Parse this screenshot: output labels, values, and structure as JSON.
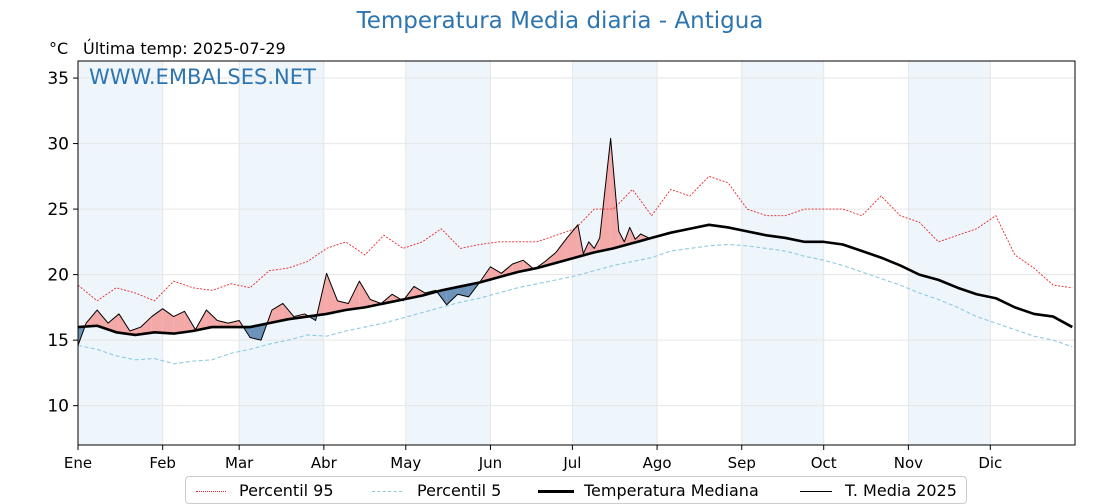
{
  "header": {
    "title": "Temperatura Media diaria - Antigua",
    "unit": "°C",
    "last_temp": "Última temp: 2025-07-29"
  },
  "watermark": "WWW.EMBALSES.NET",
  "colors": {
    "p95": "#e8272d",
    "p5": "#8ecae0",
    "median": "#000000",
    "current": "#000000",
    "above_fill": "#f4a9a9",
    "below_fill": "#6e93ba",
    "band": "#eef5fb",
    "title": "#2e75b0"
  },
  "legend": {
    "p95": "Percentil 95",
    "p5": "Percentil 5",
    "median": "Temperatura Mediana",
    "current": "T. Media 2025"
  },
  "chart_data": {
    "type": "line",
    "title": "Temperatura Media diaria - Antigua",
    "ylabel": "°C",
    "ylim": [
      7,
      36.3
    ],
    "xlim": [
      1,
      366
    ],
    "grid": true,
    "legend_position": "bottom",
    "y_ticks": [
      10,
      15,
      20,
      25,
      30,
      35
    ],
    "x_ticks": [
      {
        "day": 1,
        "label": "Ene"
      },
      {
        "day": 32,
        "label": "Feb"
      },
      {
        "day": 60,
        "label": "Mar"
      },
      {
        "day": 91,
        "label": "Abr"
      },
      {
        "day": 121,
        "label": "May"
      },
      {
        "day": 152,
        "label": "Jun"
      },
      {
        "day": 182,
        "label": "Jul"
      },
      {
        "day": 213,
        "label": "Ago"
      },
      {
        "day": 244,
        "label": "Sep"
      },
      {
        "day": 274,
        "label": "Oct"
      },
      {
        "day": 305,
        "label": "Nov"
      },
      {
        "day": 335,
        "label": "Dic"
      }
    ],
    "series": [
      {
        "name": "Percentil 95",
        "key": "p95",
        "x": [
          1,
          8,
          15,
          22,
          29,
          36,
          43,
          50,
          57,
          64,
          71,
          78,
          85,
          92,
          99,
          106,
          113,
          120,
          127,
          134,
          141,
          148,
          155,
          162,
          169,
          176,
          183,
          190,
          197,
          204,
          211,
          218,
          225,
          232,
          239,
          246,
          253,
          260,
          267,
          274,
          281,
          288,
          295,
          302,
          309,
          316,
          323,
          330,
          337,
          344,
          351,
          358,
          365
        ],
        "y": [
          19.2,
          18.0,
          19.0,
          18.6,
          18.0,
          19.5,
          19.0,
          18.8,
          19.3,
          19.0,
          20.3,
          20.5,
          21.0,
          22.0,
          22.5,
          21.5,
          23.0,
          22.0,
          22.5,
          23.5,
          22.0,
          22.3,
          22.5,
          22.5,
          22.5,
          23.0,
          23.5,
          25.0,
          25.0,
          26.5,
          24.5,
          26.5,
          26.0,
          27.5,
          27.0,
          25.0,
          24.5,
          24.5,
          25.0,
          25.0,
          25.0,
          24.5,
          26.0,
          24.5,
          24.0,
          22.5,
          23.0,
          23.5,
          24.5,
          21.5,
          20.5,
          19.2,
          19.0
        ]
      },
      {
        "name": "Percentil 5",
        "key": "p5",
        "x": [
          1,
          8,
          15,
          22,
          29,
          36,
          43,
          50,
          57,
          64,
          71,
          78,
          85,
          92,
          99,
          106,
          113,
          120,
          127,
          134,
          141,
          148,
          155,
          162,
          169,
          176,
          183,
          190,
          197,
          204,
          211,
          218,
          225,
          232,
          239,
          246,
          253,
          260,
          267,
          274,
          281,
          288,
          295,
          302,
          309,
          316,
          323,
          330,
          337,
          344,
          351,
          358,
          365
        ],
        "y": [
          14.6,
          14.3,
          13.8,
          13.5,
          13.6,
          13.2,
          13.4,
          13.5,
          14.0,
          14.3,
          14.7,
          15.0,
          15.4,
          15.3,
          15.7,
          16.0,
          16.3,
          16.7,
          17.1,
          17.5,
          17.9,
          18.2,
          18.6,
          19.0,
          19.3,
          19.6,
          19.9,
          20.3,
          20.7,
          21.0,
          21.3,
          21.8,
          22.0,
          22.2,
          22.3,
          22.2,
          22.0,
          21.8,
          21.4,
          21.1,
          20.7,
          20.2,
          19.7,
          19.2,
          18.6,
          18.1,
          17.5,
          16.8,
          16.3,
          15.8,
          15.3,
          15.0,
          14.5
        ]
      },
      {
        "name": "Temperatura Mediana",
        "key": "median",
        "x": [
          1,
          8,
          15,
          22,
          29,
          36,
          43,
          50,
          57,
          64,
          71,
          78,
          85,
          92,
          99,
          106,
          113,
          120,
          127,
          134,
          141,
          148,
          155,
          162,
          169,
          176,
          183,
          190,
          197,
          204,
          211,
          218,
          225,
          232,
          239,
          246,
          253,
          260,
          267,
          274,
          281,
          288,
          295,
          302,
          309,
          316,
          323,
          330,
          337,
          344,
          351,
          358,
          365
        ],
        "y": [
          16.0,
          16.1,
          15.6,
          15.4,
          15.6,
          15.5,
          15.7,
          16.0,
          16.0,
          16.0,
          16.3,
          16.6,
          16.8,
          17.0,
          17.3,
          17.5,
          17.8,
          18.1,
          18.4,
          18.8,
          19.1,
          19.4,
          19.8,
          20.2,
          20.5,
          20.9,
          21.3,
          21.7,
          22.0,
          22.4,
          22.8,
          23.2,
          23.5,
          23.8,
          23.6,
          23.3,
          23.0,
          22.8,
          22.5,
          22.5,
          22.3,
          21.8,
          21.3,
          20.7,
          20.0,
          19.6,
          19.0,
          18.5,
          18.2,
          17.5,
          17.0,
          16.8,
          16.0
        ]
      },
      {
        "name": "T. Media 2025",
        "key": "current",
        "x": [
          1,
          4,
          8,
          12,
          16,
          20,
          24,
          28,
          32,
          36,
          40,
          44,
          48,
          52,
          56,
          60,
          64,
          68,
          72,
          76,
          80,
          84,
          88,
          92,
          96,
          100,
          104,
          108,
          112,
          116,
          120,
          124,
          128,
          132,
          136,
          140,
          144,
          148,
          152,
          156,
          160,
          164,
          168,
          172,
          176,
          180,
          184,
          186,
          188,
          190,
          192,
          196,
          199,
          201,
          203,
          205,
          207,
          210
        ],
        "y": [
          14.6,
          16.3,
          17.3,
          16.3,
          17.0,
          15.7,
          16.0,
          16.8,
          17.4,
          16.8,
          17.2,
          15.8,
          17.3,
          16.5,
          16.3,
          16.5,
          15.2,
          15.0,
          17.3,
          17.8,
          16.8,
          17.0,
          16.5,
          20.1,
          18.0,
          17.8,
          19.5,
          18.1,
          17.8,
          18.5,
          18.0,
          19.1,
          18.6,
          18.8,
          17.7,
          18.5,
          18.3,
          19.4,
          20.6,
          20.1,
          20.8,
          21.1,
          20.4,
          21.0,
          21.7,
          22.8,
          23.8,
          21.6,
          22.5,
          22.0,
          22.8,
          30.4,
          23.3,
          22.5,
          23.6,
          22.7,
          23.1,
          22.8
        ]
      }
    ]
  }
}
